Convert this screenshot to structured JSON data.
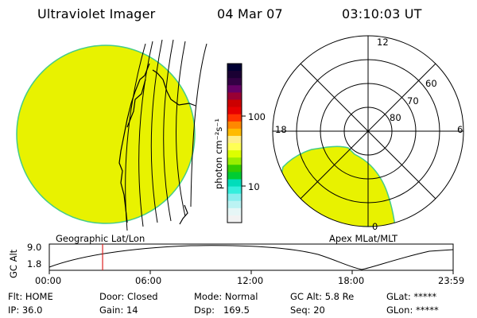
{
  "header": {
    "instrument": "Ultraviolet Imager",
    "date": "04 Mar 07",
    "time": "03:10:03 UT"
  },
  "colorbar": {
    "unit_label": "photon cm⁻²s⁻¹",
    "ticks": [
      "100",
      "10"
    ],
    "colors": [
      "#000033",
      "#1a0033",
      "#330044",
      "#660066",
      "#990033",
      "#cc0000",
      "#e60000",
      "#ff3300",
      "#ff8800",
      "#ffbb00",
      "#ffee88",
      "#ffff55",
      "#ddff00",
      "#99ee00",
      "#33cc00",
      "#00cc33",
      "#00ddbb",
      "#33eedd",
      "#88eeee",
      "#bbf3f3",
      "#e6f6f6",
      "#f2f2f2"
    ]
  },
  "maps": {
    "left_label": "Geographic Lat/Lon",
    "right_label": "Apex MLat/MLT",
    "polar_mlt_labels": {
      "top": "12",
      "left": "18",
      "right": "6",
      "bottom": "0"
    },
    "polar_lat_labels": [
      "60",
      "70",
      "80"
    ],
    "fill_color": "#e8f200",
    "edge_color": "#44cc88"
  },
  "altitude_panel": {
    "axis_label": "GC Alt",
    "y_ticks": [
      "9.0",
      "1.8"
    ],
    "x_ticks": [
      "00:00",
      "06:00",
      "12:00",
      "18:00",
      "23:59"
    ],
    "marker_time_fraction": 0.132
  },
  "status": {
    "row1": {
      "flt": "Flt: HOME",
      "door": "Door: Closed",
      "mode": "Mode: Normal",
      "gcalt": "GC Alt: 5.8 Re",
      "glat": "GLat: *****"
    },
    "row2": {
      "ip": "IP: 36.0",
      "gain": "Gain: 14",
      "dsp": "Dsp:   169.5",
      "seq": "Seq: 20",
      "glon": "GLon: *****"
    }
  }
}
